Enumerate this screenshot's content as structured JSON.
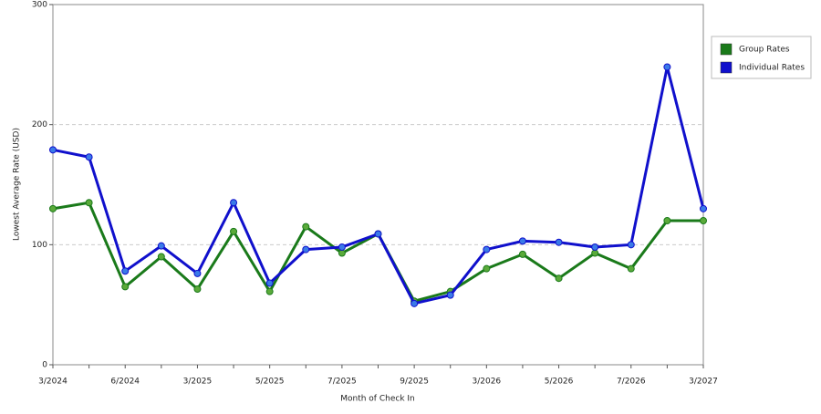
{
  "chart_data": {
    "type": "line",
    "x_label": "Month of Check In",
    "y_label": "Lowest Average Rate (USD)",
    "categories": [
      "3/2024",
      null,
      "6/2024",
      null,
      "3/2025",
      null,
      "5/2025",
      null,
      "7/2025",
      null,
      "9/2025",
      null,
      "3/2026",
      null,
      "5/2026",
      null,
      "7/2026",
      null,
      "3/2027"
    ],
    "series": [
      {
        "name": "Group Rates",
        "color": "#1a7a1a",
        "marker": "#5aaa3a",
        "values": [
          130,
          135,
          65,
          90,
          63,
          111,
          61,
          115,
          93,
          109,
          53,
          61,
          80,
          92,
          72,
          93,
          80,
          120,
          120
        ]
      },
      {
        "name": "Individual Rates",
        "color": "#1010cc",
        "marker": "#3a7ae8",
        "values": [
          179,
          173,
          78,
          99,
          76,
          135,
          68,
          96,
          98,
          109,
          51,
          58,
          96,
          103,
          102,
          98,
          100,
          248,
          130
        ]
      }
    ],
    "ylim": [
      0,
      300
    ],
    "yticks": [
      0,
      100,
      200,
      300
    ],
    "grid": true,
    "legend": "right"
  }
}
